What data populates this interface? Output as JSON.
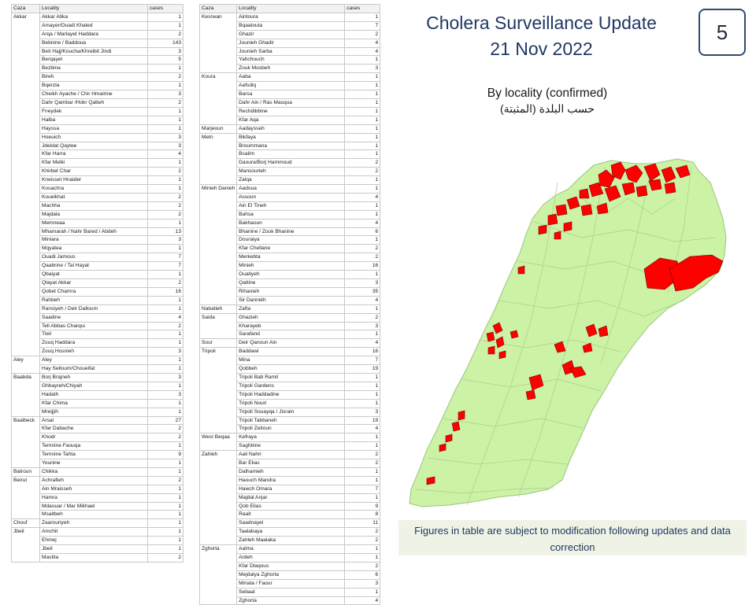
{
  "page": {
    "title": "Cholera Surveillance Update",
    "date": "21 Nov 2022",
    "slide_number": "5",
    "subtitle": "By locality (confirmed)",
    "subtitle_ar": "حسب البلدة (المثبتة)",
    "footnote": "Figures in table are subject to modification following updates and data correction"
  },
  "colors": {
    "title": "#1f3864",
    "map_land": "#ccf2a6",
    "map_borders": "#a9cf8c",
    "map_affected": "#ff0000",
    "footnote_bg": "#eff3e6"
  },
  "table": {
    "headers": {
      "caza": "Caza",
      "locality": "Locality",
      "cases": "cases"
    },
    "left": [
      {
        "caza": "Akkar",
        "rows": [
          [
            "Akkar Atika",
            "1"
          ],
          [
            "Amayer/Ouadi Khaled",
            "1"
          ],
          [
            "Arqa / Marlayet Haddara",
            "2"
          ],
          [
            "Bebnine / Baddoua",
            "143"
          ],
          [
            "Beit Hajj/Koucha/Khreibit Jindi",
            "3"
          ],
          [
            "Berqayel",
            "5"
          ],
          [
            "Bezbina",
            "1"
          ],
          [
            "Bireh",
            "2"
          ],
          [
            "Bqerzla",
            "1"
          ],
          [
            "Cheikh Ayache / Chir Hmairine",
            "3"
          ],
          [
            "Dahr Qambar /Hokr Qatteh",
            "2"
          ],
          [
            "Fneydek",
            "1"
          ],
          [
            "Halba",
            "1"
          ],
          [
            "Hayssa",
            "1"
          ],
          [
            "Hoeuich",
            "3"
          ],
          [
            "Jdeidat Qaytee",
            "3"
          ],
          [
            "Kfar Harra",
            "4"
          ],
          [
            "Kfar Melki",
            "1"
          ],
          [
            "Khirbet Char",
            "2"
          ],
          [
            "Kneisset Hnaider",
            "1"
          ],
          [
            "Kouachra",
            "1"
          ],
          [
            "Koueikhat",
            "2"
          ],
          [
            "Machha",
            "2"
          ],
          [
            "Majdala",
            "2"
          ],
          [
            "Memneaa",
            "1"
          ],
          [
            "Mhamarah / Nahr Bared / Abdeh",
            "13"
          ],
          [
            "Miniara",
            "3"
          ],
          [
            "Mqyatea",
            "1"
          ],
          [
            "Ouadi Jamous",
            "7"
          ],
          [
            "Qaabrine / Tal Hayat",
            "7"
          ],
          [
            "Qbaiyat",
            "1"
          ],
          [
            "Qlayat Akkar",
            "2"
          ],
          [
            "Qobet Chamra",
            "16"
          ],
          [
            "Rahbeh",
            "1"
          ],
          [
            "Ransiyeh / Deir Dalloum",
            "1"
          ],
          [
            "Saadine",
            "4"
          ],
          [
            "Tell Abbas Charqui",
            "2"
          ],
          [
            "Tleil",
            "1"
          ],
          [
            "Zouq Haddara",
            "1"
          ],
          [
            "Zouq Hosnieh",
            "3"
          ]
        ]
      },
      {
        "caza": "Aley",
        "rows": [
          [
            "Aley",
            "1"
          ],
          [
            "Hay Selloum/Choueifat",
            "1"
          ]
        ]
      },
      {
        "caza": "Baabda",
        "rows": [
          [
            "Borj Brajneh",
            "3"
          ],
          [
            "Ghbayreh/Chiyah",
            "1"
          ],
          [
            "Hadath",
            "3"
          ],
          [
            "Kfar Chima",
            "1"
          ],
          [
            "Mreijjih",
            "1"
          ]
        ]
      },
      {
        "caza": "Baalbeck",
        "rows": [
          [
            "Arsal",
            "27"
          ],
          [
            "Kfar Dabache",
            "2"
          ],
          [
            "Khodr",
            "2"
          ],
          [
            "Temnine Faouqa",
            "1"
          ],
          [
            "Temnine Tahta",
            "9"
          ],
          [
            "Younine",
            "1"
          ]
        ]
      },
      {
        "caza": "Batroun",
        "rows": [
          [
            "Chikka",
            "1"
          ]
        ]
      },
      {
        "caza": "Beirut",
        "rows": [
          [
            "Achrafieh",
            "2"
          ],
          [
            "Ain Mraisseh",
            "1"
          ],
          [
            "Hamra",
            "1"
          ],
          [
            "Mdaouar / Mar Mikhael",
            "1"
          ],
          [
            "Msaitbeh",
            "1"
          ]
        ]
      },
      {
        "caza": "Chouf",
        "rows": [
          [
            "Zaarouriyeh",
            "1"
          ]
        ]
      },
      {
        "caza": "Jbeil",
        "rows": [
          [
            "Amchit",
            "1"
          ],
          [
            "Ehmej",
            "1"
          ],
          [
            "Jbeil",
            "1"
          ],
          [
            "Mastita",
            "2"
          ]
        ]
      }
    ],
    "right": [
      {
        "caza": "Kesrwan",
        "rows": [
          [
            "Aintoura",
            "1"
          ],
          [
            "Bqaatouta",
            "7"
          ],
          [
            "Ghazir",
            "2"
          ],
          [
            "Jounieh Ghadir",
            "4"
          ],
          [
            "Jounieh Sarba",
            "4"
          ],
          [
            "Yahchouch",
            "1"
          ],
          [
            "Zouk Mosbeh",
            "3"
          ]
        ]
      },
      {
        "caza": "Koura",
        "rows": [
          [
            "Aaba",
            "1"
          ],
          [
            "Aafsdiq",
            "1"
          ],
          [
            "Barsa",
            "1"
          ],
          [
            "Dahr Ain / Ras Masqua",
            "1"
          ],
          [
            "Rechdibbine",
            "1"
          ],
          [
            "Kfar Aqa",
            "1"
          ]
        ]
      },
      {
        "caza": "Marjeoun",
        "rows": [
          [
            "Aadaysseh",
            "1"
          ]
        ]
      },
      {
        "caza": "Metn",
        "rows": [
          [
            "Bikfaya",
            "1"
          ],
          [
            "Broummana",
            "1"
          ],
          [
            "Bsalim",
            "1"
          ],
          [
            "Daoura/Borj Hammoud",
            "2"
          ],
          [
            "Mansourieh",
            "2"
          ],
          [
            "Zalqa",
            "1"
          ]
        ]
      },
      {
        "caza": "Minieh Danieh",
        "rows": [
          [
            "Aadoua",
            "1"
          ],
          [
            "Assoun",
            "4"
          ],
          [
            "Ain El Tineh",
            "1"
          ],
          [
            "Bahsa",
            "1"
          ],
          [
            "Bakhaoun",
            "4"
          ],
          [
            "Bhanine / Zouk Bhanine",
            "6"
          ],
          [
            "Douraiya",
            "1"
          ],
          [
            "Kfar Chellane",
            "2"
          ],
          [
            "Merkebta",
            "2"
          ],
          [
            "Minieh",
            "16"
          ],
          [
            "Ouatiyeh",
            "1"
          ],
          [
            "Qattine",
            "3"
          ],
          [
            "Rihanieh",
            "35"
          ],
          [
            "Sir Danniéh",
            "4"
          ]
        ]
      },
      {
        "caza": "Nabatieh",
        "rows": [
          [
            "Zafta",
            "1"
          ]
        ]
      },
      {
        "caza": "Saida",
        "rows": [
          [
            "Ghazieh",
            "2"
          ],
          [
            "Kharayeb",
            "3"
          ],
          [
            "Sarafand",
            "1"
          ]
        ]
      },
      {
        "caza": "Sour",
        "rows": [
          [
            "Deir Qanoun Ain",
            "4"
          ]
        ]
      },
      {
        "caza": "Tripoli",
        "rows": [
          [
            "Baddawi",
            "16"
          ],
          [
            "Mina",
            "7"
          ],
          [
            "Qobbeh",
            "19"
          ],
          [
            "Tripoli Bab Ramil",
            "1"
          ],
          [
            "Tripoli Gardens",
            "1"
          ],
          [
            "Tripoli Haddadine",
            "1"
          ],
          [
            "Tripoli Nouri",
            "1"
          ],
          [
            "Tripoli Souayqa / Jisrain",
            "3"
          ],
          [
            "Tripoli Tabbaneh",
            "19"
          ],
          [
            "Tripoli Zeitoun",
            "4"
          ]
        ]
      },
      {
        "caza": "West Beqaa",
        "rows": [
          [
            "Kefraya",
            "1"
          ],
          [
            "Saghbine",
            "1"
          ]
        ]
      },
      {
        "caza": "Zahleh",
        "rows": [
          [
            "Aali Nahri",
            "2"
          ],
          [
            "Bar Elias",
            "2"
          ],
          [
            "Dalhamieh",
            "1"
          ],
          [
            "Haouch Mandra",
            "1"
          ],
          [
            "Hawch Omara",
            "7"
          ],
          [
            "Majdal Anjar",
            "1"
          ],
          [
            "Qob Elias",
            "9"
          ],
          [
            "Raait",
            "8"
          ],
          [
            "Saadnayel",
            "11"
          ],
          [
            "Taalabaya",
            "2"
          ],
          [
            "Zahleh Maalaka",
            "2"
          ]
        ]
      },
      {
        "caza": "Zghorta",
        "rows": [
          [
            "Aalma",
            "1"
          ],
          [
            "Ardeh",
            "1"
          ],
          [
            "Kfar Dlaqous",
            "2"
          ],
          [
            "Mejdalya Zghorta",
            "6"
          ],
          [
            "Miriata / Faour",
            "3"
          ],
          [
            "Sebaal",
            "1"
          ],
          [
            "Zghorta",
            "4"
          ]
        ]
      }
    ]
  }
}
